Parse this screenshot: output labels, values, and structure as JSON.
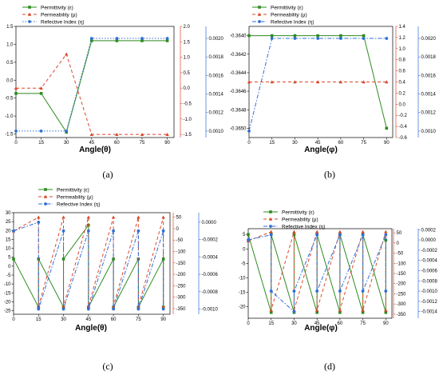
{
  "colors": {
    "permittivity": "#2e8b1f",
    "permeability": "#d9482b",
    "index": "#2f6fd6"
  },
  "chart_data": [
    {
      "panel": "a",
      "caption": "(a)",
      "type": "line",
      "xlabel": "Angle(θ)",
      "x": [
        0,
        15,
        30,
        45,
        60,
        75,
        90
      ],
      "xlim": [
        0,
        94
      ],
      "xticks": [
        "0",
        "15",
        "30",
        "45",
        "60",
        "75",
        "90"
      ],
      "ylim_left": [
        -1.6,
        1.5
      ],
      "yticks_left": [
        "-1.5",
        "-1.0",
        "-0.5",
        "0.0",
        "0.5",
        "1.0",
        "1.5"
      ],
      "ylim_right1": [
        -1.6,
        2.0
      ],
      "yticks_right1": [
        "-1.5",
        "-1.0",
        "-0.5",
        "0.0",
        "0.5",
        "1.0",
        "1.5",
        "2.0"
      ],
      "ylim_right2": [
        0.00093,
        0.00213
      ],
      "yticks_right2": [
        "0.0010",
        "0.0012",
        "0.0014",
        "0.0016",
        "0.0018",
        "0.0020"
      ],
      "legend_position": "top-left",
      "series": [
        {
          "name": "Permittivity (ε)",
          "axis": "left",
          "style": "solid",
          "marker": "square",
          "values": [
            -0.37,
            -0.37,
            -1.45,
            1.1,
            1.1,
            1.1,
            1.1
          ]
        },
        {
          "name": "Permeability (μ)",
          "axis": "right1",
          "style": "dash",
          "marker": "triangle",
          "values": [
            0.0,
            0.0,
            1.1,
            -1.5,
            -1.5,
            -1.5,
            -1.5
          ]
        },
        {
          "name": "Refective Index (η)",
          "axis": "right2",
          "style": "dot",
          "marker": "circle",
          "values": [
            0.001,
            0.001,
            0.001,
            0.002,
            0.002,
            0.002,
            0.002
          ]
        }
      ]
    },
    {
      "panel": "b",
      "caption": "(b)",
      "type": "line",
      "xlabel": "Angle(φ)",
      "x": [
        0,
        15,
        30,
        45,
        60,
        75,
        90
      ],
      "xlim": [
        0,
        94
      ],
      "xticks": [
        "0",
        "15",
        "30",
        "45",
        "60",
        "75",
        "90"
      ],
      "ylim_left": [
        -0.3651,
        -0.3639
      ],
      "yticks_left": [
        "-0.3650",
        "-0.3648",
        "-0.3646",
        "-0.3644",
        "-0.3642",
        "-0.3640"
      ],
      "ylim_right1": [
        -0.6,
        1.4
      ],
      "yticks_right1": [
        "-0.6",
        "-0.4",
        "-0.2",
        "0.0",
        "0.2",
        "0.4",
        "0.6",
        "0.8",
        "1.0",
        "1.2",
        "1.4"
      ],
      "ylim_right2": [
        0.00093,
        0.00213
      ],
      "yticks_right2": [
        "0.0010",
        "0.0012",
        "0.0014",
        "0.0016",
        "0.0018",
        "0.0020"
      ],
      "legend_position": "top-left",
      "series": [
        {
          "name": "Permittivity (ε)",
          "axis": "left",
          "style": "solid",
          "marker": "square",
          "values": [
            -0.364,
            -0.364,
            -0.364,
            -0.364,
            -0.364,
            -0.364,
            -0.365
          ]
        },
        {
          "name": "Permeability (μ)",
          "axis": "right1",
          "style": "dash",
          "marker": "triangle",
          "values": [
            0.4,
            0.4,
            0.4,
            0.4,
            0.4,
            0.4,
            0.4
          ]
        },
        {
          "name": "Refective Index (η)",
          "axis": "right2",
          "style": "dashdot",
          "marker": "circle",
          "values": [
            0.001,
            0.002,
            0.002,
            0.002,
            0.002,
            0.002,
            0.002
          ]
        }
      ]
    },
    {
      "panel": "c",
      "caption": "(c)",
      "type": "line",
      "xlabel": "Angle(θ)",
      "x": [
        0,
        15,
        15,
        30,
        30,
        45,
        45,
        60,
        60,
        75,
        75,
        90,
        90
      ],
      "xlim": [
        0,
        94
      ],
      "xticks": [
        "0",
        "15",
        "30",
        "45",
        "60",
        "75",
        "90"
      ],
      "ylim_left": [
        -27,
        30
      ],
      "yticks_left": [
        "-25",
        "-20",
        "-15",
        "-10",
        "-5",
        "0",
        "5",
        "10",
        "15",
        "20",
        "25",
        "30"
      ],
      "ylim_right1": [
        -375,
        70
      ],
      "yticks_right1": [
        "-350",
        "-300",
        "-250",
        "-200",
        "-150",
        "-100",
        "-50",
        "0",
        "50"
      ],
      "ylim_right2": [
        -0.00106,
        0.00011
      ],
      "yticks_right2": [
        "-0.0010",
        "-0.0008",
        "-0.0006",
        "-0.0004",
        "-0.0002",
        "0.0000"
      ],
      "legend_position": "top-left",
      "series": [
        {
          "name": "Permittivity (ε)",
          "axis": "left",
          "style": "solid",
          "marker": "square",
          "values": [
            4,
            -23,
            4,
            -23,
            4,
            23,
            -23,
            4,
            -23,
            4,
            -23,
            4,
            -23
          ]
        },
        {
          "name": "Permeability (μ)",
          "axis": "right1",
          "style": "dash",
          "marker": "triangle",
          "values": [
            -10,
            50,
            -340,
            50,
            -340,
            50,
            -340,
            50,
            -340,
            50,
            -340,
            50,
            -340
          ]
        },
        {
          "name": "Refective Index (η)",
          "axis": "right2",
          "style": "dashdot",
          "marker": "circle",
          "values": [
            -0.0001,
            0.0,
            -0.001,
            -0.0001,
            -0.001,
            -0.0001,
            -0.001,
            -0.0001,
            -0.001,
            -0.0001,
            -0.001,
            -0.0001,
            -0.001
          ]
        }
      ]
    },
    {
      "panel": "d",
      "caption": "(d)",
      "type": "line",
      "xlabel": "Angle(φ)",
      "x": [
        0,
        15,
        15,
        30,
        30,
        45,
        45,
        60,
        60,
        75,
        75,
        90,
        90
      ],
      "xlim": [
        0,
        94
      ],
      "xticks": [
        "0",
        "15",
        "30",
        "45",
        "60",
        "75",
        "90"
      ],
      "ylim_left": [
        -24,
        7
      ],
      "yticks_left": [
        "-20",
        "-15",
        "-10",
        "-5",
        "0",
        "5"
      ],
      "ylim_right1": [
        -370,
        70
      ],
      "yticks_right1": [
        "-350",
        "-300",
        "-250",
        "-200",
        "-150",
        "-100",
        "-50",
        "0",
        "50"
      ],
      "ylim_right2": [
        -0.00153,
        0.00022
      ],
      "yticks_right2": [
        "-0.0014",
        "-0.0012",
        "-0.0010",
        "-0.0008",
        "-0.0006",
        "-0.0004",
        "-0.0002",
        "0.0000",
        "0.0002"
      ],
      "legend_position": "top-center",
      "series": [
        {
          "name": "Permittivity (ε)",
          "axis": "left",
          "style": "solid",
          "marker": "square",
          "values": [
            5,
            -22,
            5,
            -22,
            5,
            -22,
            5,
            -22,
            5,
            -22,
            5,
            -22,
            3
          ]
        },
        {
          "name": "Permeability (μ)",
          "axis": "right1",
          "style": "dash",
          "marker": "triangle",
          "values": [
            10,
            55,
            -330,
            55,
            -330,
            55,
            -330,
            55,
            -330,
            55,
            -330,
            55,
            -330
          ]
        },
        {
          "name": "Refective Index (η)",
          "axis": "right2",
          "style": "dashdot",
          "marker": "circle",
          "values": [
            0.0,
            0.0001,
            -0.001,
            -0.0014,
            -0.001,
            0.0001,
            -0.001,
            0.0001,
            -0.001,
            0.0001,
            -0.001,
            0.0001,
            -0.001
          ]
        }
      ]
    }
  ]
}
